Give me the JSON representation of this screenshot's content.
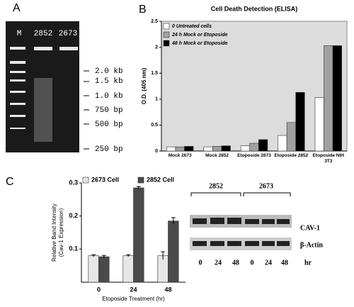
{
  "panel_labels": [
    "A",
    "B",
    "C"
  ],
  "gel": {
    "lanes": [
      "M",
      "2852",
      "2673"
    ],
    "markers": [
      "2.0 kb",
      "1.5 kb",
      "1.0 kb",
      "750 bp",
      "500 bp",
      "250 bp"
    ]
  },
  "western": {
    "groups": [
      "2852",
      "2673"
    ],
    "bands": [
      "CAV-1",
      "β-Actin"
    ],
    "times": [
      "0",
      "24",
      "48",
      "0",
      "24",
      "48"
    ],
    "unit": "hr"
  },
  "chart_data": [
    {
      "type": "bar",
      "title": "Cell Death Detection (ELISA)",
      "ylabel": "O.D. (405 nm)",
      "categories": [
        "Mock 2673",
        "Mock 2852",
        "Etoposide 2673",
        "Etoposide 2852",
        "Etoposide NIH 3T3"
      ],
      "series": [
        {
          "name": "0 Untreated cells",
          "color": "#ffffff",
          "values": [
            0.08,
            0.08,
            0.1,
            0.3,
            1.03
          ]
        },
        {
          "name": "24 h Mock or Etoposide",
          "color": "#a0a0a0",
          "values": [
            0.08,
            0.09,
            0.15,
            0.55,
            2.03
          ]
        },
        {
          "name": "48 h Mock or Etoposide",
          "color": "#000000",
          "values": [
            0.09,
            0.1,
            0.22,
            1.13,
            2.03
          ]
        }
      ],
      "ylim": [
        0,
        2.5
      ],
      "yticks": [
        0,
        0.5,
        1,
        1.5,
        2,
        2.5
      ],
      "grid": false
    },
    {
      "type": "bar",
      "ylabel": [
        "Relative Band Intensity",
        "(Cav-1 Expression)"
      ],
      "xlabel": "Etoposide Treatment (hr)",
      "categories": [
        "0",
        "24",
        "48"
      ],
      "series": [
        {
          "name": "2673 Cell",
          "color": "#e6e6e6",
          "values": [
            0.08,
            0.08,
            0.08
          ],
          "errors": [
            0.003,
            0.003,
            0.012
          ]
        },
        {
          "name": "2852 Cell",
          "color": "#4a4a4a",
          "values": [
            0.077,
            0.285,
            0.185
          ],
          "errors": [
            0.004,
            0.004,
            0.01
          ]
        }
      ],
      "ylim": [
        0,
        0.3
      ],
      "yticks": [
        0.1,
        0.2,
        0.3
      ],
      "grid": false
    }
  ]
}
